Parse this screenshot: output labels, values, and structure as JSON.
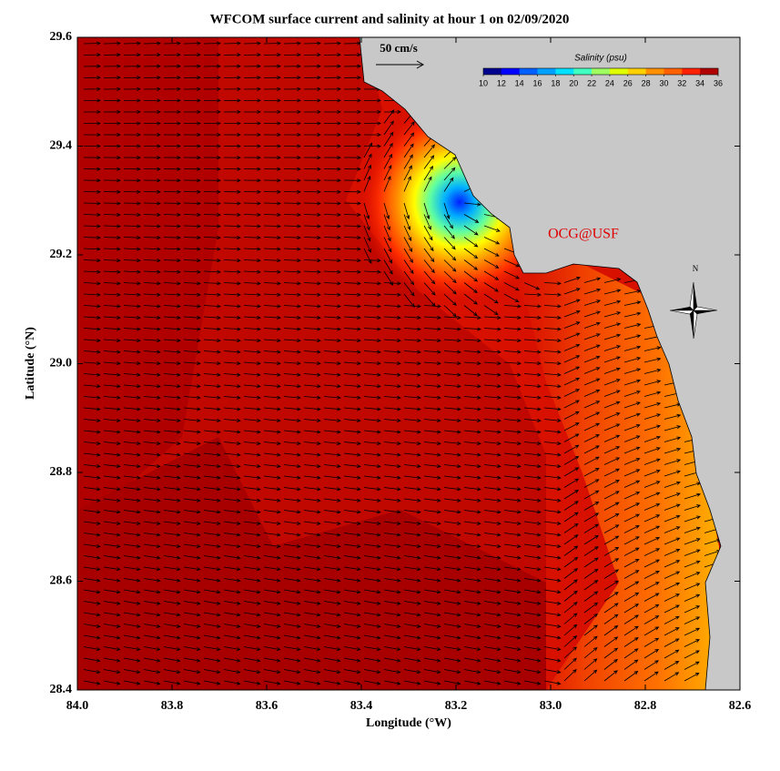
{
  "chart_data": {
    "type": "map",
    "title": "WFCOM surface current and salinity at hour 1 on 02/09/2020",
    "x_label": "Longitude (°W)",
    "y_label": "Latitude (°N)",
    "xlim": [
      84.0,
      82.6
    ],
    "xticks": [
      {
        "value": 84,
        "label": "84.0"
      },
      83.8,
      83.6,
      83.4,
      83.2,
      {
        "value": 83,
        "label": "83.0"
      },
      82.8,
      82.6
    ],
    "ylim": [
      28.4,
      29.6
    ],
    "yticks": [
      28.4,
      28.6,
      28.8,
      {
        "value": 29,
        "label": "29.0"
      },
      29.2,
      29.4,
      29.6
    ],
    "vector_scale_label": "50 cm/s",
    "credit": "OCG@USF",
    "compass_label": "N",
    "colorbar": {
      "title": "Salinity (psu)",
      "lim": [
        10,
        36
      ],
      "ticks": [
        10,
        12,
        14,
        16,
        18,
        20,
        22,
        24,
        26,
        28,
        30,
        32,
        34,
        36
      ],
      "colors": [
        "#00008f",
        "#0000ff",
        "#0060ff",
        "#00a0ff",
        "#00e0ff",
        "#40ffc0",
        "#a0ff60",
        "#e0ff00",
        "#ffd000",
        "#ff9000",
        "#ff6000",
        "#ff2000",
        "#b00000"
      ]
    }
  }
}
